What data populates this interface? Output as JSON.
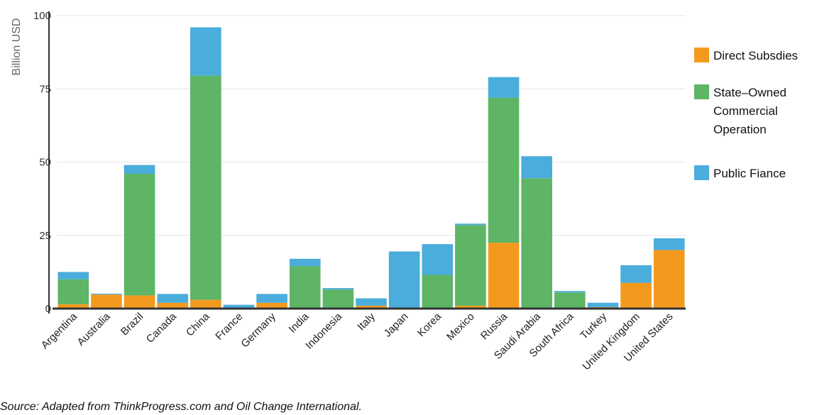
{
  "chart_data": {
    "type": "bar",
    "stacked": true,
    "ylabel": "Billion USD",
    "ylim": [
      0,
      100
    ],
    "yticks": [
      "0",
      "25",
      "50",
      "75",
      "100"
    ],
    "ytick_values": [
      0,
      25,
      50,
      75,
      100
    ],
    "grid": true,
    "legend_position": "right",
    "categories": [
      "Argentina",
      "Australia",
      "Brazil",
      "Canada",
      "China",
      "France",
      "Germany",
      "India",
      "Indonesia",
      "Italy",
      "Japan",
      "Korea",
      "Mexico",
      "Russia",
      "Saudi Arabia",
      "South Africa",
      "Turkey",
      "United Kingdom",
      "United States"
    ],
    "series": [
      {
        "name": "Direct Subsdies",
        "color": "#f39a1e",
        "values": [
          1.5,
          4.8,
          4.5,
          2.0,
          3.0,
          0.3,
          2.0,
          0.0,
          0.0,
          1.0,
          0.0,
          0.0,
          1.0,
          22.5,
          0.0,
          0.0,
          0.5,
          8.8,
          20.0
        ]
      },
      {
        "name": "State–Owned Commercial Operation",
        "name_lines": [
          "State–Owned",
          "Commercial",
          "Operation"
        ],
        "color": "#5db565",
        "values": [
          8.5,
          0.0,
          41.5,
          0.0,
          76.5,
          0.0,
          0.0,
          14.5,
          6.5,
          0.0,
          0.0,
          11.5,
          27.5,
          49.5,
          44.5,
          5.5,
          0.0,
          0.0,
          0.0
        ]
      },
      {
        "name": "Public Fiance",
        "color": "#4aaddb",
        "values": [
          2.5,
          0.3,
          3.0,
          3.0,
          16.5,
          1.0,
          3.0,
          2.5,
          0.5,
          2.5,
          19.5,
          10.5,
          0.5,
          7.0,
          7.5,
          0.5,
          1.5,
          6.0,
          4.0
        ]
      }
    ],
    "source": "Source: Adapted from ThinkProgress.com and Oil Change International."
  }
}
